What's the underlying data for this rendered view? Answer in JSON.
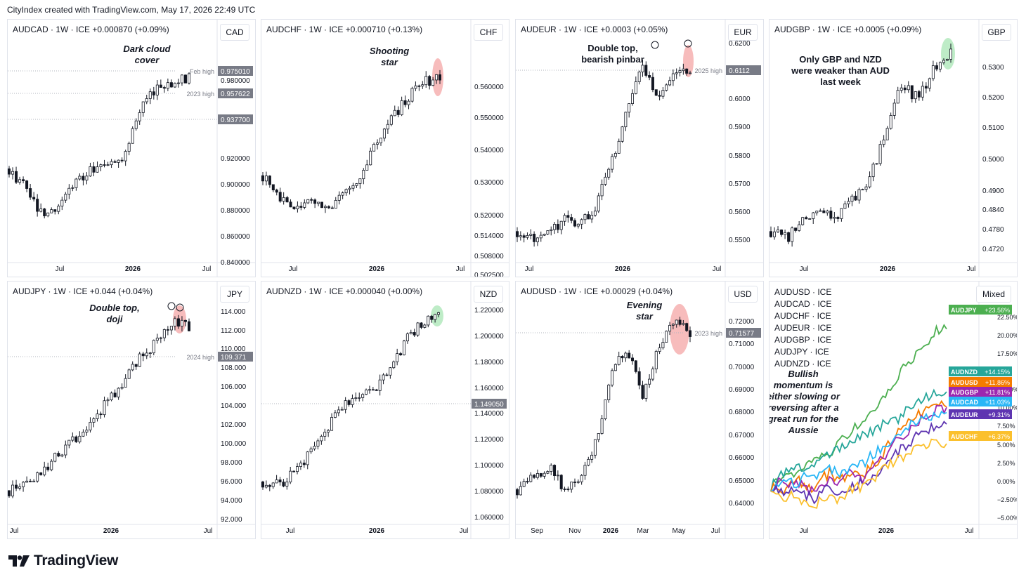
{
  "header": "CityIndex created with TradingView.com, May 17, 2026 22:49 UTC",
  "brand": "TradingView",
  "colors": {
    "up": "#ffffff",
    "down": "#131722",
    "grid": "#f0f3fa",
    "text": "#131722",
    "axisText": "#131722",
    "levelLine": "#b2b5be",
    "red_highlight": "#f4a6a6",
    "green_highlight": "#a8e6b4"
  },
  "panels": [
    {
      "id": "audcad",
      "title": "AUDCAD · 1W · ICE  +0.000870 (+0.09%)",
      "currency": "CAD",
      "y_ticks": [
        "0.980000",
        "0.920000",
        "0.900000",
        "0.880000",
        "0.860000",
        "0.840000"
      ],
      "x_ticks": [
        "Jul",
        "2026",
        "Jul"
      ],
      "level_labels": [
        {
          "text": "Feb high",
          "price": "0.975010"
        },
        {
          "text": "2023 high",
          "price": "0.957622"
        },
        {
          "text": "",
          "price": "0.937700"
        }
      ],
      "annotation": "Dark cloud cover",
      "highlight": "none"
    },
    {
      "id": "audchf",
      "title": "AUDCHF · 1W · ICE  +0.000710 (+0.13%)",
      "currency": "CHF",
      "y_ticks": [
        "0.560000",
        "0.550000",
        "0.540000",
        "0.530000",
        "0.520000",
        "0.514000",
        "0.508000",
        "0.502500"
      ],
      "x_ticks": [
        "Jul",
        "2026",
        "Jul"
      ],
      "level_labels": [],
      "annotation": "Shooting star",
      "highlight": "red"
    },
    {
      "id": "audeur",
      "title": "AUDEUR · 1W · ICE  +0.0003 (+0.05%)",
      "currency": "EUR",
      "y_ticks": [
        "0.6200",
        "0.6000",
        "0.5900",
        "0.5800",
        "0.5700",
        "0.5600",
        "0.5500"
      ],
      "x_ticks": [
        "Jul",
        "2026",
        "Jul"
      ],
      "level_labels": [
        {
          "text": "2025 high",
          "price": "0.6112"
        }
      ],
      "annotation": "Double top, bearish pinbar",
      "highlight": "red"
    },
    {
      "id": "audgbp",
      "title": "AUDGBP · 1W · ICE  +0.0005 (+0.09%)",
      "currency": "GBP",
      "y_ticks": [
        "0.5300",
        "0.5200",
        "0.5100",
        "0.5000",
        "0.4900",
        "0.4840",
        "0.4780",
        "0.4720"
      ],
      "x_ticks": [
        "Jul",
        "2026",
        "Jul"
      ],
      "level_labels": [],
      "annotation": "Only GBP and NZD were weaker than AUD last week",
      "highlight": "green"
    },
    {
      "id": "audjpy",
      "title": "AUDJPY · 1W · ICE  +0.044 (+0.04%)",
      "currency": "JPY",
      "y_ticks": [
        "114.000",
        "112.000",
        "110.000",
        "108.000",
        "106.000",
        "104.000",
        "102.000",
        "100.000",
        "98.000",
        "96.000",
        "94.000",
        "92.000"
      ],
      "x_ticks": [
        "Jul",
        "2026",
        "Jul"
      ],
      "level_labels": [
        {
          "text": "2024 high",
          "price": "109.371"
        }
      ],
      "annotation": "Double top, doji",
      "highlight": "red"
    },
    {
      "id": "audnzd",
      "title": "AUDNZD · 1W · ICE  +0.000040 (+0.00%)",
      "currency": "NZD",
      "y_ticks": [
        "1.220000",
        "1.200000",
        "1.180000",
        "1.160000",
        "1.140000",
        "1.120000",
        "1.100000",
        "1.080000",
        "1.060000"
      ],
      "x_ticks": [
        "Jul",
        "2026",
        "Jul"
      ],
      "level_labels": [
        {
          "text": "",
          "price": "1.149050"
        }
      ],
      "annotation": "",
      "highlight": "green"
    },
    {
      "id": "audusd",
      "title": "AUDUSD · 1W · ICE  +0.00029 (+0.04%)",
      "currency": "USD",
      "y_ticks": [
        "0.72000",
        "0.71000",
        "0.70000",
        "0.69000",
        "0.68000",
        "0.67000",
        "0.66000",
        "0.65000",
        "0.64000"
      ],
      "x_ticks": [
        "Sep",
        "Nov",
        "2026",
        "Mar",
        "May",
        "Jul"
      ],
      "level_labels": [
        {
          "text": "2023 high",
          "price": "0.71577"
        }
      ],
      "annotation": "Evening star",
      "highlight": "red"
    }
  ],
  "chart_data": [
    {
      "type": "candlestick",
      "symbol": "AUDCAD",
      "timeframe": "1W",
      "ylim": [
        0.835,
        1.0
      ],
      "x_ticks": [
        "Jul",
        "2026",
        "Jul"
      ],
      "key_closes": [
        0.905,
        0.89,
        0.87,
        0.875,
        0.895,
        0.905,
        0.91,
        0.915,
        0.95,
        0.965,
        0.97,
        0.975
      ],
      "levels": {
        "Feb high": 0.97501,
        "2023 high": 0.957622,
        "other": 0.9377
      }
    },
    {
      "type": "candlestick",
      "symbol": "AUDCHF",
      "timeframe": "1W",
      "ylim": [
        0.5025,
        0.5725
      ],
      "x_ticks": [
        "Jul",
        "2026",
        "Jul"
      ],
      "key_closes": [
        0.53,
        0.522,
        0.52,
        0.523,
        0.518,
        0.525,
        0.53,
        0.54,
        0.548,
        0.555,
        0.56,
        0.562
      ]
    },
    {
      "type": "candlestick",
      "symbol": "AUDEUR",
      "timeframe": "1W",
      "ylim": [
        0.5455,
        0.6225
      ],
      "x_ticks": [
        "Jul",
        "2026",
        "Jul"
      ],
      "key_closes": [
        0.556,
        0.553,
        0.556,
        0.56,
        0.558,
        0.565,
        0.58,
        0.6,
        0.615,
        0.604,
        0.612,
        0.612
      ],
      "levels": {
        "2025 high": 0.6112
      }
    },
    {
      "type": "candlestick",
      "symbol": "AUDGBP",
      "timeframe": "1W",
      "ylim": [
        0.471,
        0.537
      ],
      "x_ticks": [
        "Jul",
        "2026",
        "Jul"
      ],
      "key_closes": [
        0.48,
        0.478,
        0.483,
        0.486,
        0.485,
        0.49,
        0.495,
        0.51,
        0.525,
        0.52,
        0.53,
        0.534
      ]
    },
    {
      "type": "candlestick",
      "symbol": "AUDJPY",
      "timeframe": "1W",
      "ylim": [
        92.0,
        115.5
      ],
      "x_ticks": [
        "Jul",
        "2026",
        "Jul"
      ],
      "key_closes": [
        95.5,
        96.0,
        97.5,
        99.5,
        101.0,
        103.0,
        105.0,
        107.5,
        110.0,
        111.5,
        114.0,
        113.0
      ],
      "levels": {
        "2024 high": 109.371
      }
    },
    {
      "type": "candlestick",
      "symbol": "AUDNZD",
      "timeframe": "1W",
      "ylim": [
        1.058,
        1.227
      ],
      "x_ticks": [
        "Jul",
        "2026",
        "Jul"
      ],
      "key_closes": [
        1.09,
        1.088,
        1.097,
        1.112,
        1.13,
        1.15,
        1.155,
        1.16,
        1.18,
        1.2,
        1.213,
        1.22
      ],
      "levels": {
        "other": 1.14905
      }
    },
    {
      "type": "candlestick",
      "symbol": "AUDUSD",
      "timeframe": "1W",
      "ylim": [
        0.636,
        0.727
      ],
      "x_ticks": [
        "Sep",
        "Nov",
        "2026",
        "Mar",
        "May",
        "Jul"
      ],
      "key_closes": [
        0.65,
        0.655,
        0.66,
        0.65,
        0.655,
        0.67,
        0.7,
        0.708,
        0.69,
        0.71,
        0.72,
        0.716
      ],
      "levels": {
        "2023 high": 0.71577
      }
    },
    {
      "type": "line",
      "title": "Mixed",
      "y_unit": "%",
      "ylim": [
        -5,
        27
      ],
      "y_ticks": [
        "22.50%",
        "20.00%",
        "17.50%",
        "12.50%",
        "10.00%",
        "7.50%",
        "5.00%",
        "2.50%",
        "0.00%",
        "−2.50%",
        "−5.00%"
      ],
      "x_ticks": [
        "Jul",
        "2026",
        "Jul"
      ],
      "legend_entries": [
        "AUDUSD · ICE",
        "AUDCAD · ICE",
        "AUDCHF · ICE",
        "AUDEUR · ICE",
        "AUDGBP · ICE",
        "AUDJPY · ICE",
        "AUDNZD · ICE"
      ],
      "annotation": "Bullish momentum is either slowing or reversing after a great run for the Aussie",
      "series": [
        {
          "name": "AUDJPY",
          "last": "+23.56%",
          "color": "#4caf50",
          "values": [
            0,
            1,
            2,
            1.5,
            3,
            3.5,
            4.5,
            5,
            6,
            7.5,
            9,
            10,
            11,
            12.5,
            14,
            16,
            18,
            19,
            21,
            22,
            23.5,
            23.56
          ]
        },
        {
          "name": "AUDNZD",
          "last": "+14.15%",
          "color": "#26a69a",
          "values": [
            0,
            1.5,
            2,
            3,
            2.5,
            3.5,
            4,
            5,
            5.5,
            6,
            7,
            7.5,
            8,
            9,
            9.5,
            10,
            11,
            12,
            13,
            13.5,
            14,
            14.15
          ]
        },
        {
          "name": "AUDUSD",
          "last": "+11.86%",
          "color": "#f57c00",
          "values": [
            0,
            -1,
            0,
            1,
            0.5,
            -0.5,
            1,
            2,
            1,
            1.5,
            2,
            1.5,
            3,
            4,
            6,
            8,
            9,
            10,
            11,
            12.5,
            12,
            11.86
          ]
        },
        {
          "name": "AUDGBP",
          "last": "+11.81%",
          "color": "#9c27b0",
          "values": [
            0,
            0.5,
            -0.5,
            1,
            0,
            -1,
            0,
            1,
            0,
            1.5,
            2,
            1,
            2.5,
            4,
            5,
            7,
            8,
            9,
            10,
            11,
            11.5,
            11.81
          ]
        },
        {
          "name": "AUDCAD",
          "last": "+11.03%",
          "color": "#29b6f6",
          "values": [
            0,
            0.5,
            1,
            0,
            2,
            1,
            2,
            3,
            2,
            2.5,
            3,
            3.5,
            4.5,
            5.5,
            6.5,
            8,
            8.5,
            9.5,
            10,
            10.5,
            11,
            11.03
          ]
        },
        {
          "name": "AUDEUR",
          "last": "+9.31%",
          "color": "#5e35b1",
          "values": [
            0,
            -1,
            -1.5,
            0,
            -1,
            -2,
            -1,
            0,
            -1,
            -0.5,
            0,
            0.5,
            1,
            2,
            3.5,
            5,
            6,
            7,
            8,
            8.5,
            9,
            9.31
          ]
        },
        {
          "name": "AUDCHF",
          "last": "+6.37%",
          "color": "#fbc02d",
          "values": [
            0,
            -1.5,
            -2,
            -1,
            -2.5,
            -3,
            -2,
            -1,
            -2,
            -1,
            0,
            -0.5,
            1,
            2,
            3,
            4,
            4.5,
            5.5,
            6,
            6.5,
            6.3,
            6.37
          ]
        }
      ]
    }
  ]
}
